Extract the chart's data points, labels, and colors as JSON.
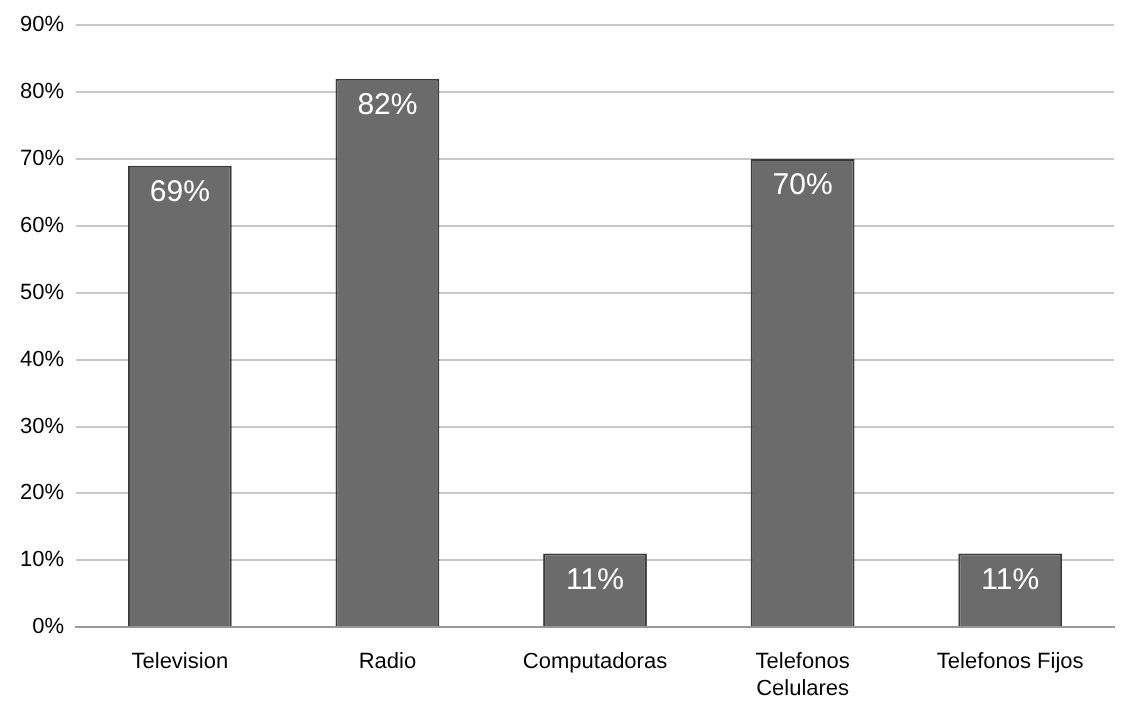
{
  "chart_data": {
    "type": "bar",
    "categories": [
      "Television",
      "Radio",
      "Computadoras",
      "Telefonos Celulares",
      "Telefonos Fijos"
    ],
    "values": [
      69,
      82,
      11,
      70,
      11
    ],
    "value_labels": [
      "69%",
      "82%",
      "11%",
      "70%",
      "11%"
    ],
    "color": "#6b6b6b",
    "ylim": [
      0,
      90
    ],
    "yticks": [
      {
        "value": 0,
        "label": "0%"
      },
      {
        "value": 10,
        "label": "10%"
      },
      {
        "value": 20,
        "label": "20%"
      },
      {
        "value": 30,
        "label": "30%"
      },
      {
        "value": 40,
        "label": "40%"
      },
      {
        "value": 50,
        "label": "50%"
      },
      {
        "value": 60,
        "label": "60%"
      },
      {
        "value": 70,
        "label": "70%"
      },
      {
        "value": 80,
        "label": "80%"
      },
      {
        "value": 90,
        "label": "90%"
      }
    ],
    "grid": "y",
    "legend": false
  }
}
